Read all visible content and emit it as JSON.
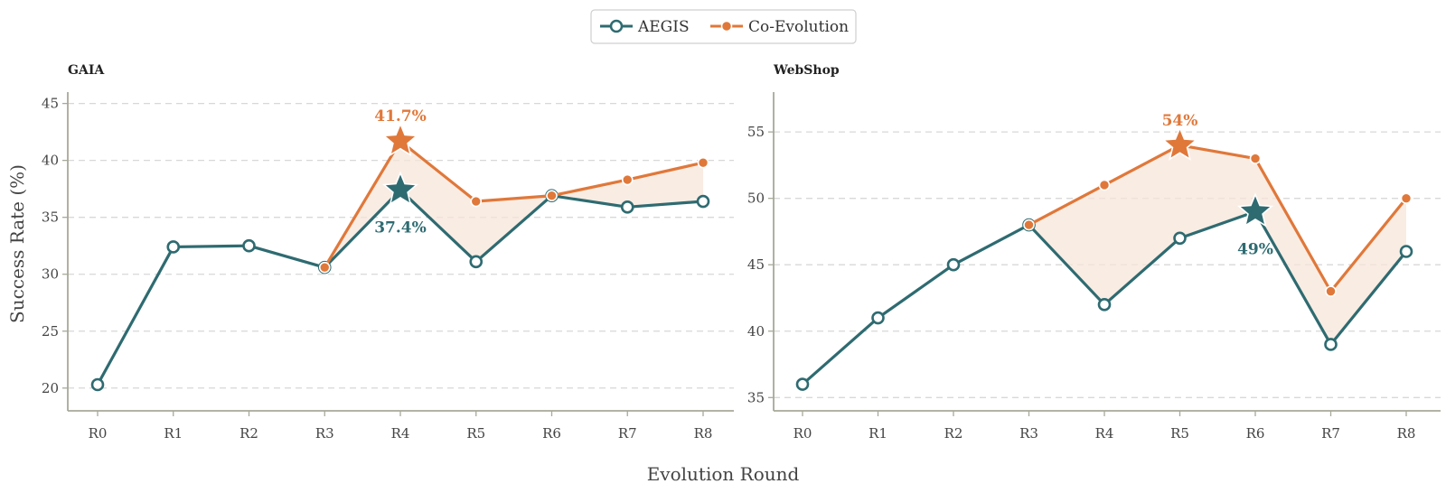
{
  "legend": {
    "items": [
      {
        "label": "AEGIS",
        "color": "#2e6b71"
      },
      {
        "label": "Co-Evolution",
        "color": "#e0783a"
      }
    ]
  },
  "xlabel": "Evolution Round",
  "ylabel": "Success Rate  (%)",
  "colors": {
    "aegis": "#2e6b71",
    "coevo": "#e0783a",
    "fill": "#f7e6da",
    "grid": "#d8d8d8",
    "axis": "#a8a89a"
  },
  "chart_data": [
    {
      "type": "line",
      "title": "GAIA",
      "categories": [
        "R0",
        "R1",
        "R2",
        "R3",
        "R4",
        "R5",
        "R6",
        "R7",
        "R8"
      ],
      "yticks": [
        20,
        25,
        30,
        35,
        40,
        45
      ],
      "ylim": [
        18,
        46
      ],
      "series": [
        {
          "name": "AEGIS",
          "values": [
            20.3,
            32.4,
            32.5,
            30.6,
            37.4,
            31.1,
            36.9,
            35.9,
            36.4
          ]
        },
        {
          "name": "Co-Evolution",
          "values": [
            null,
            null,
            null,
            30.6,
            41.7,
            36.4,
            36.9,
            38.3,
            39.8
          ]
        }
      ],
      "peaks": [
        {
          "series": "AEGIS",
          "x": "R4",
          "label": "37.4%",
          "pos": "below"
        },
        {
          "series": "Co-Evolution",
          "x": "R4",
          "label": "41.7%",
          "pos": "above"
        }
      ],
      "grid": true
    },
    {
      "type": "line",
      "title": "WebShop",
      "categories": [
        "R0",
        "R1",
        "R2",
        "R3",
        "R4",
        "R5",
        "R6",
        "R7",
        "R8"
      ],
      "yticks": [
        35,
        40,
        45,
        50,
        55
      ],
      "ylim": [
        34,
        58
      ],
      "series": [
        {
          "name": "AEGIS",
          "values": [
            36,
            41,
            45,
            48,
            42,
            47,
            49,
            39,
            46
          ]
        },
        {
          "name": "Co-Evolution",
          "values": [
            null,
            null,
            null,
            48,
            51,
            54,
            53,
            43,
            50
          ]
        }
      ],
      "peaks": [
        {
          "series": "AEGIS",
          "x": "R6",
          "label": "49%",
          "pos": "below"
        },
        {
          "series": "Co-Evolution",
          "x": "R5",
          "label": "54%",
          "pos": "above"
        }
      ],
      "grid": true
    }
  ]
}
